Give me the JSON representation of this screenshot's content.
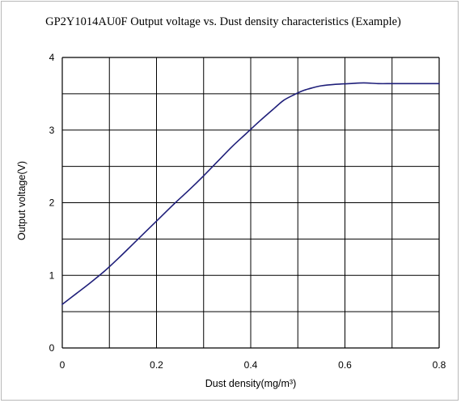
{
  "chart_data": {
    "type": "line",
    "title": "GP2Y1014AU0F Output voltage vs. Dust density characteristics (Example)",
    "xlabel": "Dust density(mg/m³)",
    "ylabel": "Output voltage(V)",
    "xlim": [
      0,
      0.8
    ],
    "ylim": [
      0,
      4
    ],
    "x_ticks": [
      "0",
      "0.2",
      "0.4",
      "0.6",
      "0.8"
    ],
    "y_ticks": [
      "0",
      "1",
      "2",
      "3",
      "4"
    ],
    "grid": true,
    "line_color": "#1f1f7a",
    "series": [
      {
        "x": [
          0,
          0.03,
          0.06,
          0.09,
          0.12,
          0.15,
          0.18,
          0.21,
          0.24,
          0.27,
          0.3,
          0.33,
          0.36,
          0.39,
          0.42,
          0.45,
          0.47,
          0.49,
          0.51,
          0.53,
          0.55,
          0.58,
          0.61,
          0.64,
          0.67,
          0.7,
          0.73,
          0.76,
          0.8
        ],
        "y": [
          0.6,
          0.75,
          0.9,
          1.06,
          1.24,
          1.43,
          1.62,
          1.81,
          2.0,
          2.18,
          2.37,
          2.57,
          2.77,
          2.95,
          3.13,
          3.3,
          3.41,
          3.48,
          3.54,
          3.58,
          3.61,
          3.63,
          3.64,
          3.65,
          3.64,
          3.64,
          3.64,
          3.64,
          3.64
        ]
      }
    ]
  }
}
